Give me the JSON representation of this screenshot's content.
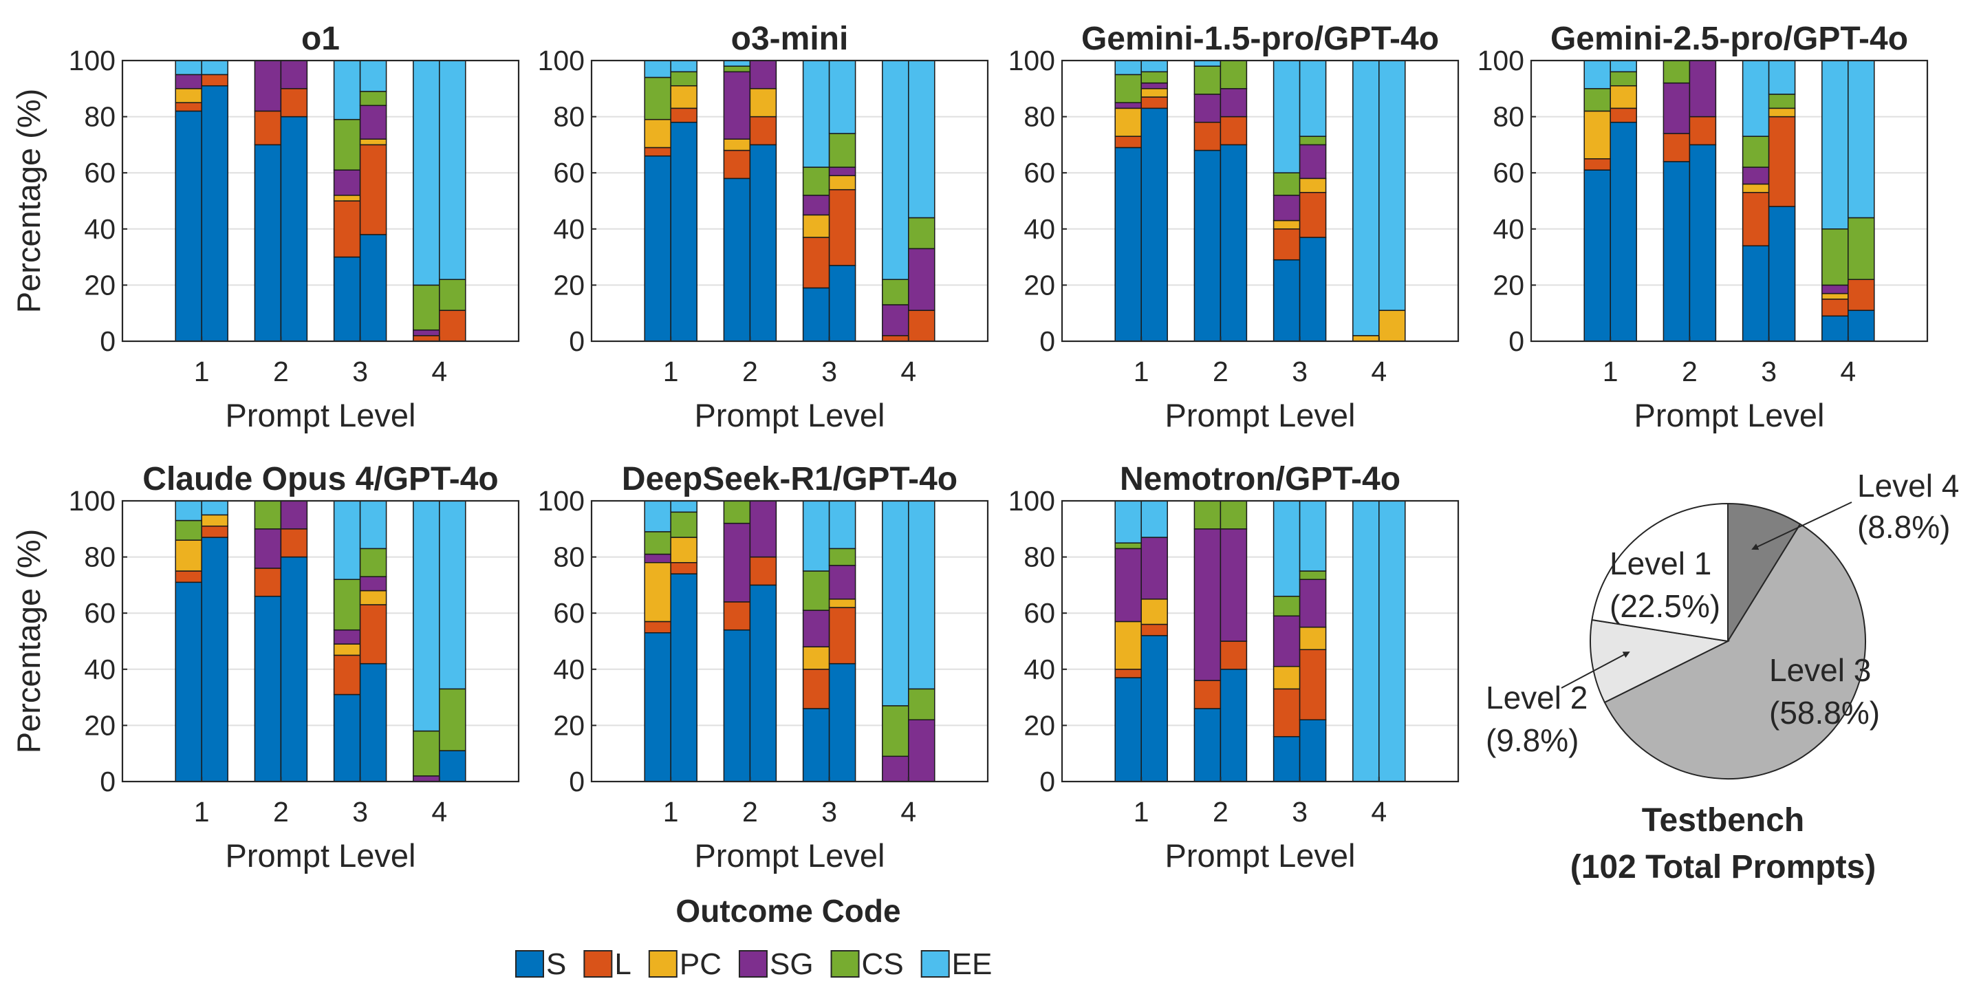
{
  "colors": {
    "S": "#0072BD",
    "L": "#D95319",
    "PC": "#EDB120",
    "SG": "#7E2F8E",
    "CS": "#77AC30",
    "EE": "#4DBEEE"
  },
  "chart_data": [
    {
      "type": "bar",
      "stacked": true,
      "title": "o1",
      "xlabel": "Prompt Level",
      "ylabel": "Percentage (%)",
      "ylim": [
        0,
        100
      ],
      "yticks": [
        0,
        20,
        40,
        60,
        80,
        100
      ],
      "categories": [
        "1",
        "2",
        "3",
        "4"
      ],
      "bars_per_category": 2,
      "segments": [
        "S",
        "L",
        "PC",
        "SG",
        "CS",
        "EE"
      ],
      "bars": [
        [
          82,
          3,
          5,
          5,
          0,
          5
        ],
        [
          91,
          4,
          0,
          0,
          0,
          5
        ],
        [
          70,
          12,
          0,
          18,
          0,
          0
        ],
        [
          80,
          10,
          0,
          10,
          0,
          0
        ],
        [
          30,
          20,
          2,
          9,
          18,
          21
        ],
        [
          38,
          32,
          2,
          12,
          5,
          11
        ],
        [
          0,
          2,
          0,
          2,
          16,
          80
        ],
        [
          0,
          11,
          0,
          0,
          11,
          78
        ]
      ]
    },
    {
      "type": "bar",
      "stacked": true,
      "title": "o3-mini",
      "xlabel": "Prompt Level",
      "ylabel": "Percentage (%)",
      "ylim": [
        0,
        100
      ],
      "yticks": [
        0,
        20,
        40,
        60,
        80,
        100
      ],
      "categories": [
        "1",
        "2",
        "3",
        "4"
      ],
      "bars_per_category": 2,
      "segments": [
        "S",
        "L",
        "PC",
        "SG",
        "CS",
        "EE"
      ],
      "bars": [
        [
          66,
          3,
          10,
          0,
          15,
          6
        ],
        [
          78,
          5,
          8,
          0,
          5,
          4
        ],
        [
          58,
          10,
          4,
          24,
          2,
          2
        ],
        [
          70,
          10,
          10,
          10,
          0,
          0
        ],
        [
          19,
          18,
          8,
          7,
          10,
          38
        ],
        [
          27,
          27,
          5,
          3,
          12,
          26
        ],
        [
          0,
          2,
          0,
          11,
          9,
          78
        ],
        [
          0,
          11,
          0,
          22,
          11,
          56
        ]
      ]
    },
    {
      "type": "bar",
      "stacked": true,
      "title": "Gemini-1.5-pro/GPT-4o",
      "xlabel": "Prompt Level",
      "ylabel": "Percentage (%)",
      "ylim": [
        0,
        100
      ],
      "yticks": [
        0,
        20,
        40,
        60,
        80,
        100
      ],
      "categories": [
        "1",
        "2",
        "3",
        "4"
      ],
      "bars_per_category": 2,
      "segments": [
        "S",
        "L",
        "PC",
        "SG",
        "CS",
        "EE"
      ],
      "bars": [
        [
          69,
          4,
          10,
          2,
          10,
          5
        ],
        [
          83,
          4,
          3,
          2,
          4,
          4
        ],
        [
          68,
          10,
          0,
          10,
          10,
          2
        ],
        [
          70,
          10,
          0,
          10,
          10,
          0
        ],
        [
          29,
          11,
          3,
          9,
          8,
          40
        ],
        [
          37,
          16,
          5,
          12,
          3,
          27
        ],
        [
          0,
          0,
          2,
          0,
          0,
          98
        ],
        [
          0,
          0,
          11,
          0,
          0,
          89
        ]
      ]
    },
    {
      "type": "bar",
      "stacked": true,
      "title": "Gemini-2.5-pro/GPT-4o",
      "xlabel": "Prompt Level",
      "ylabel": "Percentage (%)",
      "ylim": [
        0,
        100
      ],
      "yticks": [
        0,
        20,
        40,
        60,
        80,
        100
      ],
      "categories": [
        "1",
        "2",
        "3",
        "4"
      ],
      "bars_per_category": 2,
      "segments": [
        "S",
        "L",
        "PC",
        "SG",
        "CS",
        "EE"
      ],
      "bars": [
        [
          61,
          4,
          17,
          0,
          8,
          10
        ],
        [
          78,
          5,
          8,
          0,
          5,
          4
        ],
        [
          64,
          10,
          0,
          18,
          8,
          0
        ],
        [
          70,
          10,
          0,
          20,
          0,
          0
        ],
        [
          34,
          19,
          3,
          6,
          11,
          27
        ],
        [
          48,
          32,
          3,
          0,
          5,
          12
        ],
        [
          9,
          6,
          2,
          3,
          20,
          60
        ],
        [
          11,
          11,
          0,
          0,
          22,
          56
        ]
      ]
    },
    {
      "type": "bar",
      "stacked": true,
      "title": "Claude Opus 4/GPT-4o",
      "xlabel": "Prompt Level",
      "ylabel": "Percentage (%)",
      "ylim": [
        0,
        100
      ],
      "yticks": [
        0,
        20,
        40,
        60,
        80,
        100
      ],
      "categories": [
        "1",
        "2",
        "3",
        "4"
      ],
      "bars_per_category": 2,
      "segments": [
        "S",
        "L",
        "PC",
        "SG",
        "CS",
        "EE"
      ],
      "bars": [
        [
          71,
          4,
          11,
          0,
          7,
          7
        ],
        [
          87,
          4,
          4,
          0,
          0,
          5
        ],
        [
          66,
          10,
          0,
          14,
          10,
          0
        ],
        [
          80,
          10,
          0,
          10,
          0,
          0
        ],
        [
          31,
          14,
          4,
          5,
          18,
          28
        ],
        [
          42,
          21,
          5,
          5,
          10,
          17
        ],
        [
          0,
          0,
          0,
          2,
          16,
          82
        ],
        [
          11,
          0,
          0,
          0,
          22,
          67
        ]
      ]
    },
    {
      "type": "bar",
      "stacked": true,
      "title": "DeepSeek-R1/GPT-4o",
      "xlabel": "Prompt Level",
      "ylabel": "Percentage (%)",
      "ylim": [
        0,
        100
      ],
      "yticks": [
        0,
        20,
        40,
        60,
        80,
        100
      ],
      "categories": [
        "1",
        "2",
        "3",
        "4"
      ],
      "bars_per_category": 2,
      "segments": [
        "S",
        "L",
        "PC",
        "SG",
        "CS",
        "EE"
      ],
      "bars": [
        [
          53,
          4,
          21,
          3,
          8,
          11
        ],
        [
          74,
          4,
          9,
          0,
          9,
          4
        ],
        [
          54,
          10,
          0,
          28,
          8,
          0
        ],
        [
          70,
          10,
          0,
          20,
          0,
          0
        ],
        [
          26,
          14,
          8,
          13,
          14,
          25
        ],
        [
          42,
          20,
          3,
          12,
          6,
          17
        ],
        [
          0,
          0,
          0,
          9,
          18,
          73
        ],
        [
          0,
          0,
          0,
          22,
          11,
          67
        ]
      ]
    },
    {
      "type": "bar",
      "stacked": true,
      "title": "Nemotron/GPT-4o",
      "xlabel": "Prompt Level",
      "ylabel": "Percentage (%)",
      "ylim": [
        0,
        100
      ],
      "yticks": [
        0,
        20,
        40,
        60,
        80,
        100
      ],
      "categories": [
        "1",
        "2",
        "3",
        "4"
      ],
      "bars_per_category": 2,
      "segments": [
        "S",
        "L",
        "PC",
        "SG",
        "CS",
        "EE"
      ],
      "bars": [
        [
          37,
          3,
          17,
          26,
          2,
          15
        ],
        [
          52,
          4,
          9,
          22,
          0,
          13
        ],
        [
          26,
          10,
          0,
          54,
          10,
          0
        ],
        [
          40,
          10,
          0,
          40,
          10,
          0
        ],
        [
          16,
          17,
          8,
          18,
          7,
          34
        ],
        [
          22,
          25,
          8,
          17,
          3,
          25
        ],
        [
          0,
          0,
          0,
          0,
          0,
          100
        ],
        [
          0,
          0,
          0,
          0,
          0,
          100
        ]
      ]
    },
    {
      "type": "pie",
      "title_lines": [
        "Testbench",
        "(102 Total Prompts)"
      ],
      "slices": [
        {
          "label": "Level 4",
          "value_label": "(8.8%)",
          "value": 8.8,
          "color": "#808080"
        },
        {
          "label": "Level 3",
          "value_label": "(58.8%)",
          "value": 58.8,
          "color": "#B3B3B3"
        },
        {
          "label": "Level 2",
          "value_label": "(9.8%)",
          "value": 9.8,
          "color": "#E6E6E6"
        },
        {
          "label": "Level 1",
          "value_label": "(22.5%)",
          "value": 22.5,
          "color": "#FFFFFF"
        }
      ]
    }
  ],
  "legend": {
    "title": "Outcome Code",
    "items": [
      "S",
      "L",
      "PC",
      "SG",
      "CS",
      "EE"
    ]
  }
}
